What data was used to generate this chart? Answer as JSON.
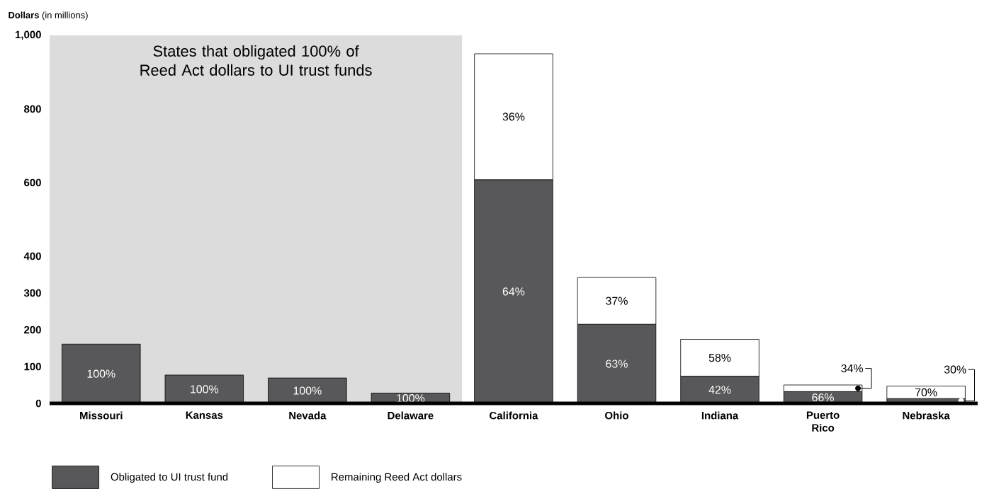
{
  "chart_data": {
    "type": "bar",
    "stacked": true,
    "legend": "bottom left",
    "ylabel": "**Dollars** (in millions)",
    "categories": [
      "Missouri",
      "Kansas",
      "Nevada",
      "Delaware",
      "California",
      "Ohio",
      "Indiana",
      "Puerto Rico",
      "Nebraska"
    ],
    "ylim": [
      0,
      1000
    ],
    "yticks": [
      0,
      100,
      200,
      300,
      400,
      600,
      800,
      {
        "value": 1000,
        "label": "1,000"
      }
    ],
    "bands": [
      {
        "axis": "x",
        "from": "Missouri",
        "to": "Delaware",
        "label": "States that obligated 100% of Reed Act dollars to UI trust funds",
        "color": "#dcdcdc"
      }
    ],
    "series": [
      {
        "name": "Obligated to UI trust fund",
        "color": "#58585a",
        "values": [
          161,
          77,
          69,
          28,
          608,
          215,
          74,
          32,
          13
        ]
      },
      {
        "name": "Remaining Reed Act dollars",
        "color": "#ffffff",
        "values": [
          null,
          null,
          null,
          null,
          342,
          127,
          100,
          18,
          34
        ]
      }
    ],
    "annotations": [
      "100%",
      "100%",
      "100%",
      "100%",
      "64%",
      "36%",
      "63%",
      "37%",
      "42%",
      "58%",
      "66%",
      {
        "text": "34%",
        "x": "Puerto Rico",
        "y": 41
      },
      {
        "text": "30%",
        "x": "Nebraska",
        "y": 6.5
      },
      "70%"
    ]
  }
}
